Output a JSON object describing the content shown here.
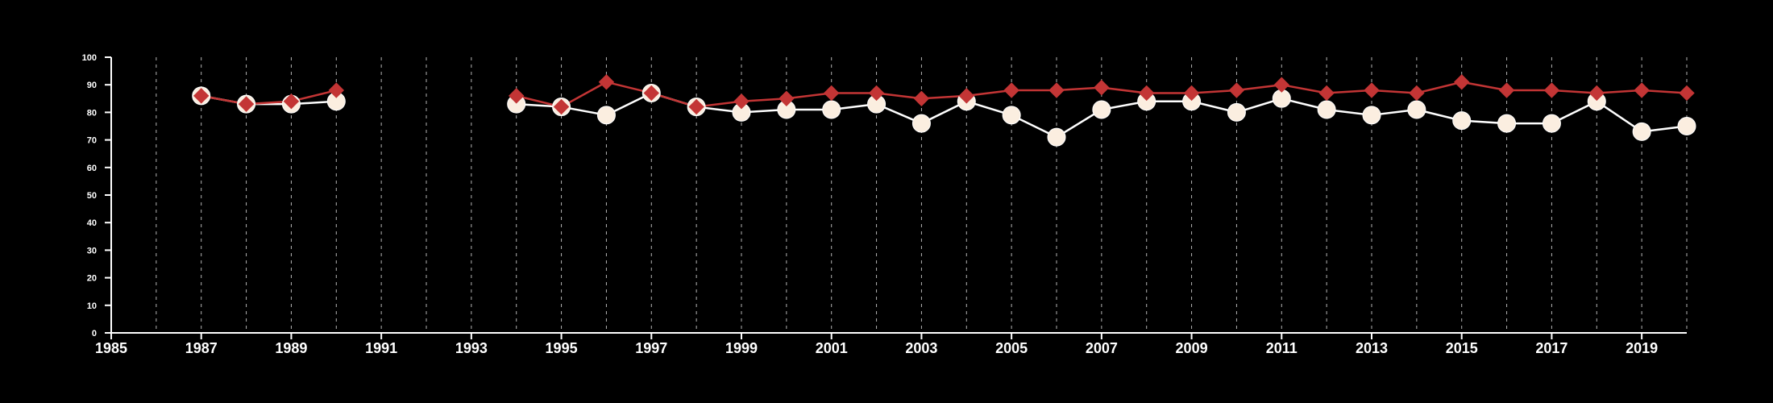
{
  "chart_data": {
    "type": "line",
    "title": "",
    "xlabel": "",
    "ylabel": "",
    "xlim": [
      1985,
      2020
    ],
    "ylim": [
      0,
      100
    ],
    "x_ticks": [
      1985,
      1987,
      1989,
      1991,
      1993,
      1995,
      1997,
      1999,
      2001,
      2003,
      2005,
      2007,
      2009,
      2011,
      2013,
      2015,
      2017,
      2019
    ],
    "y_ticks": [
      0,
      10,
      20,
      30,
      40,
      50,
      60,
      70,
      80,
      90,
      100
    ],
    "x_tick_labels": [
      "1985",
      "1987",
      "1989",
      "1991",
      "1993",
      "1995",
      "1997",
      "1999",
      "2001",
      "2003",
      "2005",
      "2007",
      "2009",
      "2011",
      "2013",
      "2015",
      "2017",
      "2019"
    ],
    "y_tick_labels": [
      "0",
      "10",
      "20",
      "30",
      "40",
      "50",
      "60",
      "70",
      "80",
      "90",
      "100"
    ],
    "vertical_gridlines_years": [
      1986,
      1987,
      1988,
      1989,
      1990,
      1991,
      1992,
      1993,
      1994,
      1995,
      1996,
      1997,
      1998,
      1999,
      2000,
      2001,
      2002,
      2003,
      2004,
      2005,
      2006,
      2007,
      2008,
      2009,
      2010,
      2011,
      2012,
      2013,
      2014,
      2015,
      2016,
      2017,
      2018,
      2019,
      2020
    ],
    "grid": "vertical dashed",
    "legend": "none",
    "series": [
      {
        "marker": "circle",
        "color": "#fbeee0",
        "line_color": "#ffffff",
        "segments": [
          {
            "x": [
              1987,
              1988,
              1989,
              1990
            ],
            "y": [
              86,
              83,
              83,
              84
            ]
          },
          {
            "x": [
              1994,
              1995,
              1996,
              1997,
              1998,
              1999,
              2000,
              2001,
              2002,
              2003,
              2004,
              2005,
              2006,
              2007,
              2008,
              2009,
              2010,
              2011,
              2012,
              2013,
              2014,
              2015,
              2016,
              2017,
              2018,
              2019,
              2020
            ],
            "y": [
              83,
              82,
              79,
              87,
              82,
              80,
              81,
              81,
              83,
              76,
              84,
              79,
              71,
              81,
              84,
              84,
              80,
              85,
              81,
              79,
              81,
              77,
              76,
              76,
              84,
              73,
              75
            ]
          }
        ]
      },
      {
        "marker": "diamond",
        "color": "#c33535",
        "line_color": "#c33535",
        "segments": [
          {
            "x": [
              1987,
              1988,
              1989,
              1990
            ],
            "y": [
              86,
              83,
              84,
              88
            ]
          },
          {
            "x": [
              1994,
              1995,
              1996,
              1997,
              1998,
              1999,
              2000,
              2001,
              2002,
              2003,
              2004,
              2005,
              2006,
              2007,
              2008,
              2009,
              2010,
              2011,
              2012,
              2013,
              2014,
              2015,
              2016,
              2017,
              2018,
              2019,
              2020
            ],
            "y": [
              86,
              82,
              91,
              87,
              82,
              84,
              85,
              87,
              87,
              85,
              86,
              88,
              88,
              89,
              87,
              87,
              88,
              90,
              87,
              88,
              87,
              91,
              88,
              88,
              87,
              88,
              87
            ]
          }
        ]
      }
    ],
    "colors": {
      "background": "#000000",
      "axis": "#ffffff",
      "grid": "#bfbfbf",
      "series_1_marker": "#fbeee0",
      "series_1_line": "#ffffff",
      "series_2": "#c33535"
    }
  }
}
